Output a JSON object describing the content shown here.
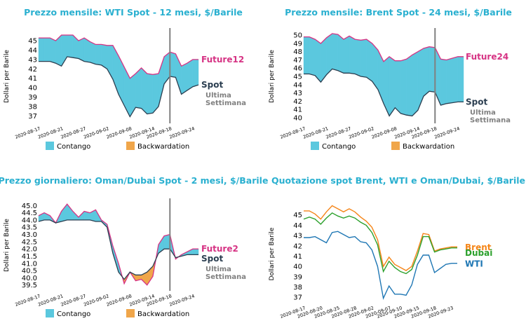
{
  "colors": {
    "contango": "#5bc8de",
    "backwardation": "#f0a64a",
    "future": "#d63384",
    "spot": "#2b3e50",
    "title": "#2ab0d0",
    "last_week": "#808080",
    "vline": "#808080",
    "brent": "#f58518",
    "wti": "#1f77b4",
    "dubai": "#2ca02c"
  },
  "chart_data": [
    {
      "type": "area",
      "title": "Prezzo mensile: WTI Spot - 12 mesi, $/Barile",
      "ylabel": "Dollari per Barile",
      "ylim": [
        36.2,
        46.2
      ],
      "yticks": [
        37,
        38,
        39,
        40,
        41,
        42,
        43,
        44,
        45
      ],
      "ytick_labels": [
        "37",
        "38",
        "39",
        "40",
        "41",
        "42",
        "43",
        "44",
        "45"
      ],
      "xtick_labels": [
        "2020-08-17",
        "2020-08-21",
        "2020-08-27",
        "2020-09-02",
        "2020-09-08",
        "2020-09-14",
        "2020-09-18",
        "2020-09-24"
      ],
      "xtick_pos": [
        0,
        4,
        8,
        12,
        16,
        20,
        23,
        27
      ],
      "future_label": "Future12",
      "spot_label": "Spot",
      "last_week_label": [
        "Ultima",
        "Settimana"
      ],
      "vline_x": 23,
      "future": [
        45.3,
        45.3,
        45.3,
        45.0,
        45.6,
        45.6,
        45.6,
        45.0,
        45.3,
        44.9,
        44.6,
        44.6,
        44.5,
        44.5,
        43.4,
        42.2,
        41.0,
        41.5,
        42.1,
        41.5,
        41.4,
        41.5,
        43.3,
        43.8,
        43.6,
        42.3,
        42.6,
        43.0,
        43.0
      ],
      "spot": [
        42.8,
        42.8,
        42.8,
        42.6,
        42.3,
        43.3,
        43.2,
        43.1,
        42.8,
        42.7,
        42.5,
        42.4,
        42.0,
        40.9,
        39.3,
        38.1,
        36.9,
        37.9,
        37.8,
        37.2,
        37.3,
        38.0,
        40.4,
        41.2,
        41.1,
        39.3,
        39.7,
        40.1,
        40.3
      ],
      "legend": [
        "Contango",
        "Backwardation"
      ]
    },
    {
      "type": "area",
      "title": "Prezzo mensile: Brent Spot - 24 mesi, $/Barile",
      "ylabel": "Dollari per Barile",
      "ylim": [
        39.3,
        50.7
      ],
      "yticks": [
        40,
        41,
        42,
        43,
        44,
        45,
        46,
        47,
        48,
        49,
        50
      ],
      "ytick_labels": [
        "40",
        "41",
        "42",
        "43",
        "44",
        "45",
        "46",
        "47",
        "48",
        "49",
        "50"
      ],
      "xtick_labels": [
        "2020-08-17",
        "2020-08-21",
        "2020-08-27",
        "2020-09-02",
        "2020-09-08",
        "2020-09-14",
        "2020-09-18",
        "2020-09-24"
      ],
      "xtick_pos": [
        0,
        4,
        8,
        12,
        16,
        20,
        23,
        27
      ],
      "future_label": "Future24",
      "spot_label": "Spot",
      "last_week_label": [
        "Ultima",
        "Settimana"
      ],
      "vline_x": 23,
      "future": [
        49.8,
        49.8,
        49.5,
        49.0,
        49.7,
        50.2,
        50.1,
        49.5,
        49.9,
        49.5,
        49.4,
        49.5,
        49.0,
        48.2,
        46.8,
        47.4,
        46.9,
        46.9,
        47.1,
        47.6,
        48.0,
        48.4,
        48.6,
        48.5,
        47.1,
        47.0,
        47.2,
        47.4,
        47.4
      ],
      "spot": [
        45.3,
        45.3,
        45.1,
        44.3,
        45.2,
        45.9,
        45.7,
        45.4,
        45.4,
        45.3,
        45.0,
        44.9,
        44.4,
        43.4,
        41.7,
        40.2,
        41.2,
        40.5,
        40.3,
        40.2,
        40.9,
        42.6,
        43.2,
        43.1,
        41.5,
        41.7,
        41.8,
        41.9,
        41.9
      ],
      "legend": [
        "Contango",
        "Backwardation"
      ]
    },
    {
      "type": "area",
      "title": "Prezzo giornaliero: Oman/Dubai Spot - 2 mesi, $/Barile",
      "ylabel": "Dollari per Barile",
      "ylim": [
        39.1,
        45.4
      ],
      "yticks": [
        39.5,
        40.0,
        40.5,
        41.0,
        41.5,
        42.0,
        42.5,
        43.0,
        43.5,
        44.0,
        44.5,
        45.0
      ],
      "ytick_labels": [
        "39.5",
        "40.0",
        "40.5",
        "41.0",
        "41.5",
        "42.0",
        "42.5",
        "43.0",
        "43.5",
        "44.0",
        "44.5",
        "45.0"
      ],
      "xtick_labels": [
        "2020-08-17",
        "2020-08-21",
        "2020-08-27",
        "2020-09-02",
        "2020-09-08",
        "2020-09-14",
        "2020-09-18",
        "2020-09-24"
      ],
      "xtick_pos": [
        0,
        4,
        8,
        12,
        16,
        20,
        23,
        27
      ],
      "future_label": "Future2",
      "spot_label": "Spot",
      "last_week_label": [
        "Ultima",
        "Settimana"
      ],
      "vline_x": 23,
      "future": [
        44.3,
        44.5,
        44.3,
        43.8,
        44.6,
        45.1,
        44.6,
        44.2,
        44.6,
        44.5,
        44.7,
        44.0,
        43.7,
        42.2,
        41.0,
        39.6,
        40.4,
        39.8,
        39.9,
        39.5,
        40.1,
        42.3,
        42.9,
        43.0,
        41.3,
        41.6,
        41.8,
        42.0,
        42.0
      ],
      "spot": [
        43.9,
        44.0,
        44.0,
        43.8,
        43.9,
        44.0,
        44.0,
        44.0,
        44.0,
        44.0,
        43.9,
        43.9,
        43.5,
        41.7,
        40.4,
        39.9,
        40.4,
        40.2,
        40.2,
        40.4,
        40.8,
        41.7,
        42.0,
        42.0,
        41.4,
        41.5,
        41.6,
        41.6,
        41.6
      ],
      "legend": [
        "Contango",
        "Backwardation"
      ]
    },
    {
      "type": "line",
      "title": "Quotazione spot Brent, WTI e Oman/Dubai, $/Barile",
      "ylabel": "Dollari per Barile",
      "ylim": [
        36.6,
        45.8
      ],
      "yticks": [
        37,
        38,
        39,
        40,
        41,
        42,
        43,
        44,
        45
      ],
      "ytick_labels": [
        "37",
        "38",
        "39",
        "40",
        "41",
        "42",
        "43",
        "44",
        "45"
      ],
      "xtick_labels": [
        "2020-08-17",
        "2020-08-20",
        "2020-08-25",
        "2020-08-28",
        "2020-09-02",
        "2020-09-07",
        "2020-09-10",
        "2020-09-15",
        "2020-09-18",
        "2020-09-23"
      ],
      "xtick_pos": [
        0,
        3,
        6,
        9,
        12,
        15,
        17,
        20,
        23,
        26
      ],
      "series": [
        {
          "name": "Brent",
          "color": "#f58518",
          "values": [
            45.4,
            45.4,
            45.1,
            44.6,
            45.3,
            45.9,
            45.6,
            45.3,
            45.6,
            45.3,
            44.8,
            44.4,
            43.8,
            42.6,
            40.0,
            40.9,
            40.2,
            39.9,
            39.6,
            40.0,
            41.5,
            43.2,
            43.1,
            41.5,
            41.7,
            41.8,
            41.9,
            41.9
          ]
        },
        {
          "name": "Dubai",
          "color": "#2ca02c",
          "values": [
            44.6,
            44.8,
            44.6,
            44.1,
            44.7,
            45.2,
            44.9,
            44.7,
            44.9,
            44.7,
            44.3,
            44.0,
            43.3,
            42.1,
            39.5,
            40.5,
            39.9,
            39.5,
            39.3,
            39.7,
            41.1,
            42.9,
            42.9,
            41.4,
            41.6,
            41.7,
            41.8,
            41.8
          ]
        },
        {
          "name": "WTI",
          "color": "#1f77b4",
          "values": [
            42.8,
            42.8,
            42.9,
            42.6,
            42.3,
            43.3,
            43.4,
            43.1,
            42.8,
            42.9,
            42.4,
            42.3,
            41.6,
            40.0,
            36.9,
            38.1,
            37.3,
            37.3,
            37.2,
            38.2,
            40.2,
            41.1,
            41.1,
            39.4,
            39.8,
            40.2,
            40.3,
            40.3
          ]
        }
      ]
    }
  ]
}
